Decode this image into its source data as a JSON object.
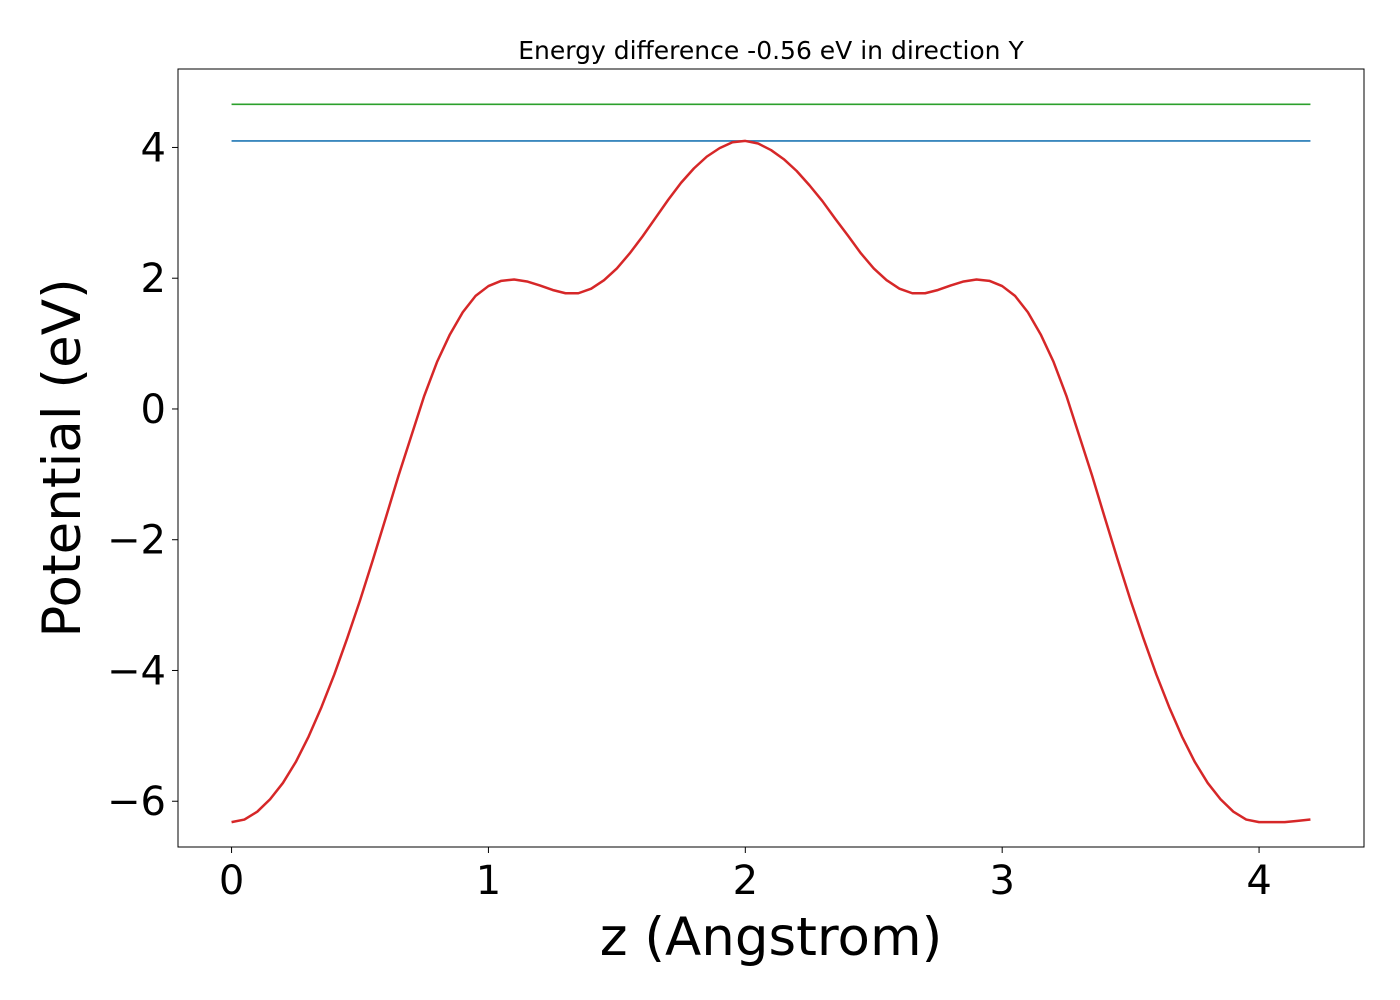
{
  "chart_data": {
    "type": "line",
    "title": "Energy difference -0.56 eV in direction Y",
    "xlabel": "z (Angstrom)",
    "ylabel": "Potential (eV)",
    "xlim": [
      -0.2085,
      4.4085
    ],
    "ylim": [
      -6.7,
      5.2
    ],
    "xticks": [
      0,
      1,
      2,
      3,
      4
    ],
    "yticks": [
      -6,
      -4,
      -2,
      0,
      2,
      4
    ],
    "xtick_labels": [
      "0",
      "1",
      "2",
      "3",
      "4"
    ],
    "ytick_labels": [
      "−6",
      "−4",
      "−2",
      "0",
      "2",
      "4"
    ],
    "grid": false,
    "legend": "none",
    "series": [
      {
        "color": "#2ca02c",
        "x": [
          0,
          4.2
        ],
        "y": [
          4.66,
          4.66
        ]
      },
      {
        "color": "#1f77b4",
        "x": [
          0,
          4.2
        ],
        "y": [
          4.1,
          4.1
        ]
      },
      {
        "color": "#d62728",
        "x": [
          0,
          0.05,
          0.1,
          0.15,
          0.2,
          0.25,
          0.3,
          0.35,
          0.4,
          0.45,
          0.5,
          0.55,
          0.6,
          0.65,
          0.7,
          0.75,
          0.8,
          0.85,
          0.9,
          0.95,
          1.0,
          1.05,
          1.1,
          1.15,
          1.2,
          1.25,
          1.3,
          1.35,
          1.4,
          1.45,
          1.5,
          1.55,
          1.6,
          1.65,
          1.7,
          1.75,
          1.8,
          1.85,
          1.9,
          1.95,
          2.0,
          2.05,
          2.1,
          2.15,
          2.2,
          2.25,
          2.3,
          2.35,
          2.4,
          2.45,
          2.5,
          2.55,
          2.6,
          2.65,
          2.7,
          2.75,
          2.8,
          2.85,
          2.9,
          2.95,
          3.0,
          3.05,
          3.1,
          3.15,
          3.2,
          3.25,
          3.3,
          3.35,
          3.4,
          3.45,
          3.5,
          3.55,
          3.6,
          3.65,
          3.7,
          3.75,
          3.8,
          3.85,
          3.9,
          3.95,
          4.0,
          4.05,
          4.1,
          4.15,
          4.2
        ],
        "y": [
          -6.32,
          -6.28,
          -6.16,
          -5.97,
          -5.72,
          -5.4,
          -5.01,
          -4.56,
          -4.06,
          -3.51,
          -2.93,
          -2.31,
          -1.67,
          -1.02,
          -0.41,
          0.2,
          0.72,
          1.14,
          1.48,
          1.73,
          1.88,
          1.96,
          1.98,
          1.95,
          1.89,
          1.82,
          1.77,
          1.77,
          1.84,
          1.97,
          2.15,
          2.38,
          2.64,
          2.92,
          3.2,
          3.46,
          3.68,
          3.86,
          3.99,
          4.08,
          4.1,
          4.06,
          3.96,
          3.82,
          3.64,
          3.42,
          3.18,
          2.91,
          2.65,
          2.38,
          2.15,
          1.97,
          1.84,
          1.77,
          1.77,
          1.82,
          1.89,
          1.95,
          1.98,
          1.96,
          1.88,
          1.73,
          1.48,
          1.14,
          0.72,
          0.2,
          -0.41,
          -1.02,
          -1.67,
          -2.31,
          -2.93,
          -3.51,
          -4.06,
          -4.56,
          -5.01,
          -5.4,
          -5.72,
          -5.97,
          -6.16,
          -6.28,
          -6.32,
          -6.32,
          -6.32,
          -6.3,
          -6.28
        ]
      }
    ]
  }
}
